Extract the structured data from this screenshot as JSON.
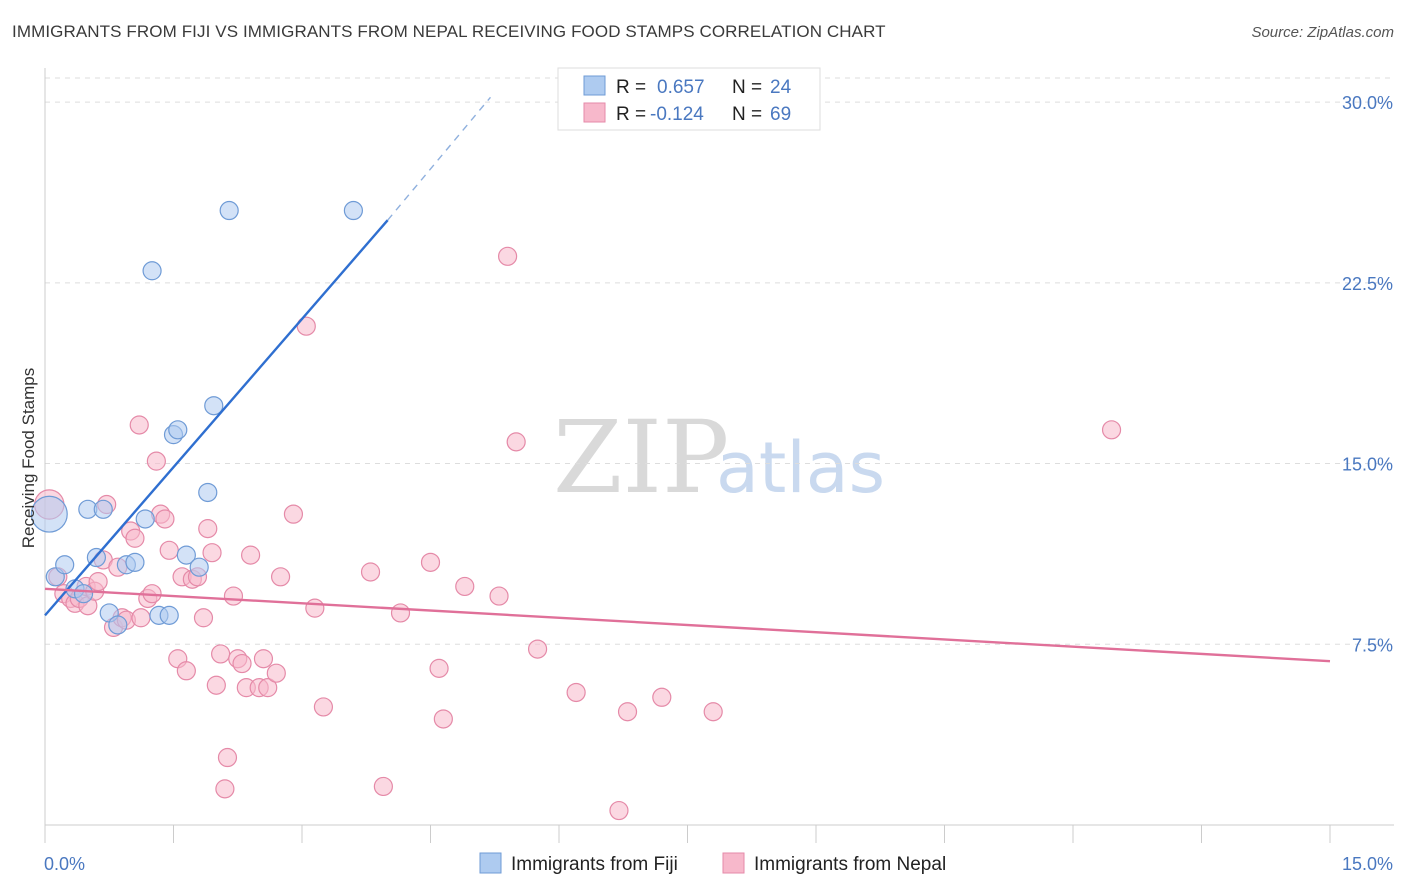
{
  "header": {
    "title": "IMMIGRANTS FROM FIJI VS IMMIGRANTS FROM NEPAL RECEIVING FOOD STAMPS CORRELATION CHART",
    "source": "Source: ZipAtlas.com"
  },
  "watermark": {
    "zip": "ZIP",
    "atlas": "atlas"
  },
  "legend": {
    "r_label": "R =",
    "n_label": "N =",
    "fiji": {
      "r": "0.657",
      "n": "24"
    },
    "nepal": {
      "r": "-0.124",
      "n": "69"
    }
  },
  "colors": {
    "fiji_fill": "#aecbf0",
    "fiji_stroke": "#6f9bd6",
    "fiji_line": "#2f6fd0",
    "nepal_fill": "#f7b8cb",
    "nepal_stroke": "#e58aa8",
    "nepal_line": "#e07099",
    "axis_text": "#4a78c0",
    "grid": "#dddddd"
  },
  "chart_data": {
    "type": "scatter",
    "title": "IMMIGRANTS FROM FIJI VS IMMIGRANTS FROM NEPAL RECEIVING FOOD STAMPS CORRELATION CHART",
    "xlabel": "",
    "ylabel": "Receiving Food Stamps",
    "xlim": [
      0,
      15
    ],
    "ylim": [
      0,
      31
    ],
    "x_tick_labels": [
      "0.0%",
      "15.0%"
    ],
    "y_ticks": [
      7.5,
      15.0,
      22.5,
      30.0
    ],
    "y_tick_labels": [
      "7.5%",
      "15.0%",
      "22.5%",
      "30.0%"
    ],
    "grid": true,
    "legend_position": "top-center",
    "series": [
      {
        "name": "Immigrants from Fiji",
        "r": 0.657,
        "n": 24,
        "trend": {
          "x": [
            0,
            4.0
          ],
          "y": [
            8.7,
            25.1
          ],
          "dashed_to": [
            5.2,
            30.2
          ]
        },
        "points": [
          [
            0.05,
            12.9,
            3
          ],
          [
            0.12,
            10.3,
            1
          ],
          [
            0.23,
            10.8,
            1
          ],
          [
            0.35,
            9.8,
            1
          ],
          [
            0.45,
            9.6,
            1
          ],
          [
            0.5,
            13.1,
            1
          ],
          [
            0.6,
            11.1,
            1
          ],
          [
            0.68,
            13.1,
            1
          ],
          [
            0.75,
            8.8,
            1
          ],
          [
            0.85,
            8.3,
            1
          ],
          [
            0.95,
            10.8,
            1
          ],
          [
            1.05,
            10.9,
            1
          ],
          [
            1.17,
            12.7,
            1
          ],
          [
            1.25,
            23.0,
            1
          ],
          [
            1.33,
            8.7,
            1
          ],
          [
            1.45,
            8.7,
            1
          ],
          [
            1.5,
            16.2,
            1
          ],
          [
            1.55,
            16.4,
            1
          ],
          [
            1.65,
            11.2,
            1
          ],
          [
            1.8,
            10.7,
            1
          ],
          [
            1.9,
            13.8,
            1
          ],
          [
            1.97,
            17.4,
            1
          ],
          [
            2.15,
            25.5,
            1
          ],
          [
            3.6,
            25.5,
            1
          ]
        ]
      },
      {
        "name": "Immigrants from Nepal",
        "r": -0.124,
        "n": 69,
        "trend": {
          "x": [
            0,
            15.0
          ],
          "y": [
            9.8,
            6.8
          ]
        },
        "points": [
          [
            0.05,
            13.3,
            2
          ],
          [
            0.15,
            10.3,
            1
          ],
          [
            0.22,
            9.6,
            1
          ],
          [
            0.3,
            9.4,
            1
          ],
          [
            0.35,
            9.2,
            1
          ],
          [
            0.4,
            9.4,
            1
          ],
          [
            0.48,
            9.9,
            1
          ],
          [
            0.5,
            9.1,
            1
          ],
          [
            0.58,
            9.7,
            1
          ],
          [
            0.62,
            10.1,
            1
          ],
          [
            0.68,
            11.0,
            1
          ],
          [
            0.72,
            13.3,
            1
          ],
          [
            0.8,
            8.2,
            1
          ],
          [
            0.85,
            10.7,
            1
          ],
          [
            0.9,
            8.6,
            1
          ],
          [
            0.95,
            8.5,
            1
          ],
          [
            1.0,
            12.2,
            1
          ],
          [
            1.05,
            11.9,
            1
          ],
          [
            1.1,
            16.6,
            1
          ],
          [
            1.2,
            9.4,
            1
          ],
          [
            1.25,
            9.6,
            1
          ],
          [
            1.3,
            15.1,
            1
          ],
          [
            1.35,
            12.9,
            1
          ],
          [
            1.4,
            12.7,
            1
          ],
          [
            1.45,
            11.4,
            1
          ],
          [
            1.55,
            6.9,
            1
          ],
          [
            1.6,
            10.3,
            1
          ],
          [
            1.65,
            6.4,
            1
          ],
          [
            1.72,
            10.2,
            1
          ],
          [
            1.78,
            10.3,
            1
          ],
          [
            1.85,
            8.6,
            1
          ],
          [
            1.9,
            12.3,
            1
          ],
          [
            1.95,
            11.3,
            1
          ],
          [
            2.0,
            5.8,
            1
          ],
          [
            2.05,
            7.1,
            1
          ],
          [
            2.1,
            1.5,
            1
          ],
          [
            2.13,
            2.8,
            1
          ],
          [
            2.2,
            9.5,
            1
          ],
          [
            2.25,
            6.9,
            1
          ],
          [
            2.3,
            6.7,
            1
          ],
          [
            2.35,
            5.7,
            1
          ],
          [
            2.4,
            11.2,
            1
          ],
          [
            2.5,
            5.7,
            1
          ],
          [
            2.55,
            6.9,
            1
          ],
          [
            2.6,
            5.7,
            1
          ],
          [
            2.7,
            6.3,
            1
          ],
          [
            2.75,
            10.3,
            1
          ],
          [
            2.9,
            12.9,
            1
          ],
          [
            3.05,
            20.7,
            1
          ],
          [
            3.15,
            9.0,
            1
          ],
          [
            3.25,
            4.9,
            1
          ],
          [
            3.8,
            10.5,
            1
          ],
          [
            3.95,
            1.6,
            1
          ],
          [
            4.15,
            8.8,
            1
          ],
          [
            4.5,
            10.9,
            1
          ],
          [
            4.6,
            6.5,
            1
          ],
          [
            4.65,
            4.4,
            1
          ],
          [
            4.9,
            9.9,
            1
          ],
          [
            5.3,
            9.5,
            1
          ],
          [
            5.4,
            23.6,
            1
          ],
          [
            5.5,
            15.9,
            1
          ],
          [
            5.75,
            7.3,
            1
          ],
          [
            6.2,
            5.5,
            1
          ],
          [
            6.7,
            0.6,
            1
          ],
          [
            6.8,
            4.7,
            1
          ],
          [
            7.2,
            5.3,
            1
          ],
          [
            7.8,
            4.7,
            1
          ],
          [
            12.45,
            16.4,
            1
          ],
          [
            1.12,
            8.6,
            1
          ]
        ]
      }
    ]
  },
  "bottom_legend": {
    "items": [
      "Immigrants from Fiji",
      "Immigrants from Nepal"
    ]
  }
}
